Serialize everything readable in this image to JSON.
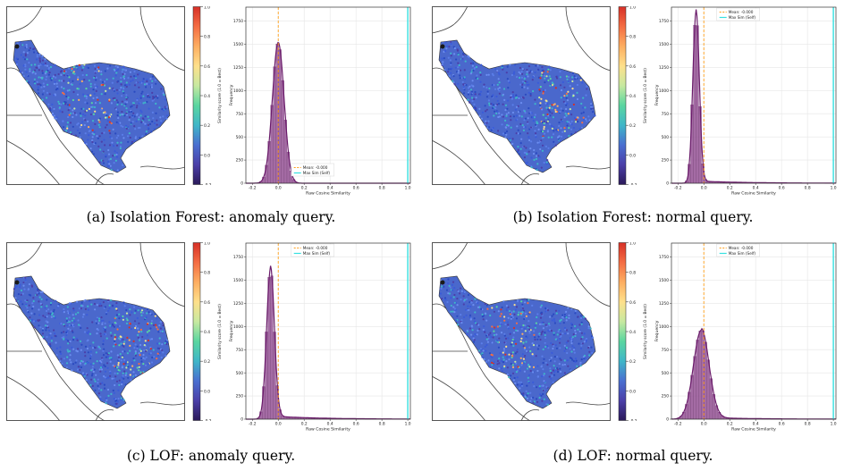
{
  "colors": {
    "kde": "#6a1b6a",
    "bar_fill": "#9b5b9b",
    "bar_edge": "#5a1a5a",
    "mean_line": "#ff9f1a",
    "self_line": "#35e0e0",
    "grid": "#e6e6e6",
    "map_border": "#555555"
  },
  "colorbar": {
    "label": "Similarity score (1.0 = Best)",
    "ticks": [
      "1.0",
      "0.8",
      "0.6",
      "0.4",
      "0.2",
      "0.0",
      "-0.2"
    ],
    "stops": [
      "#d73027",
      "#f46d43",
      "#fdae61",
      "#fee08b",
      "#c7e9a0",
      "#5ad6a0",
      "#3fb6c8",
      "#4a6fd0",
      "#4b3fa8",
      "#2b1a5a"
    ]
  },
  "panels": [
    {
      "caption": "(a) Isolation Forest: anomaly query.",
      "map_hotspot": "center",
      "chart_data": {
        "type": "bar",
        "xlabel": "Raw Cosine Similarity",
        "ylabel": "Frequency",
        "xlim": [
          -0.25,
          1.02
        ],
        "ylim": [
          0,
          1900
        ],
        "xticks": [
          "-0.2",
          "0.0",
          "0.2",
          "0.4",
          "0.6",
          "0.8",
          "1.0"
        ],
        "yticks": [
          "0",
          "250",
          "500",
          "750",
          "1000",
          "1250",
          "1500",
          "1750"
        ],
        "legend": [
          "Mean: -0.000",
          "Max Sim (Self)"
        ],
        "legend_loc": "lower-center",
        "mean": 0.0,
        "self": 1.0,
        "peak_x": 0.0,
        "peak_y": 1520,
        "width": 0.045,
        "tail": 0
      }
    },
    {
      "caption": "(b) Isolation Forest: normal query.",
      "map_hotspot": "east",
      "chart_data": {
        "type": "bar",
        "xlabel": "Raw Cosine Similarity",
        "ylabel": "Frequency",
        "xlim": [
          -0.25,
          1.02
        ],
        "ylim": [
          0,
          1900
        ],
        "xticks": [
          "-0.2",
          "0.0",
          "0.2",
          "0.4",
          "0.6",
          "0.8",
          "1.0"
        ],
        "yticks": [
          "0",
          "250",
          "500",
          "750",
          "1000",
          "1250",
          "1500",
          "1750"
        ],
        "legend": [
          "Mean: -0.000",
          "Max Sim (Self)"
        ],
        "legend_loc": "top-center",
        "mean": 0.0,
        "self": 1.0,
        "peak_x": -0.06,
        "peak_y": 1850,
        "width": 0.025,
        "tail": 25
      }
    },
    {
      "caption": "(c) LOF: anomaly query.",
      "map_hotspot": "east",
      "chart_data": {
        "type": "bar",
        "xlabel": "Raw Cosine Similarity",
        "ylabel": "Frequency",
        "xlim": [
          -0.25,
          1.02
        ],
        "ylim": [
          0,
          1900
        ],
        "xticks": [
          "-0.2",
          "0.0",
          "0.2",
          "0.4",
          "0.6",
          "0.8",
          "1.0"
        ],
        "yticks": [
          "0",
          "250",
          "500",
          "750",
          "1000",
          "1250",
          "1500",
          "1750"
        ],
        "legend": [
          "Mean: -0.000",
          "Max Sim (Self)"
        ],
        "legend_loc": "top-center",
        "mean": 0.0,
        "self": 1.0,
        "peak_x": -0.06,
        "peak_y": 1620,
        "width": 0.03,
        "tail": 35
      }
    },
    {
      "caption": "(d) LOF: normal query.",
      "map_hotspot": "center",
      "chart_data": {
        "type": "bar",
        "xlabel": "Raw Cosine Similarity",
        "ylabel": "Frequency",
        "xlim": [
          -0.25,
          1.02
        ],
        "ylim": [
          0,
          1900
        ],
        "xticks": [
          "-0.2",
          "0.0",
          "0.2",
          "0.4",
          "0.6",
          "0.8",
          "1.0"
        ],
        "yticks": [
          "0",
          "250",
          "500",
          "750",
          "1000",
          "1250",
          "1500",
          "1750"
        ],
        "legend": [
          "Mean: -0.000",
          "Max Sim (Self)"
        ],
        "legend_loc": "top-center",
        "mean": 0.0,
        "self": 1.0,
        "peak_x": -0.02,
        "peak_y": 960,
        "width": 0.06,
        "tail": 20
      }
    }
  ]
}
